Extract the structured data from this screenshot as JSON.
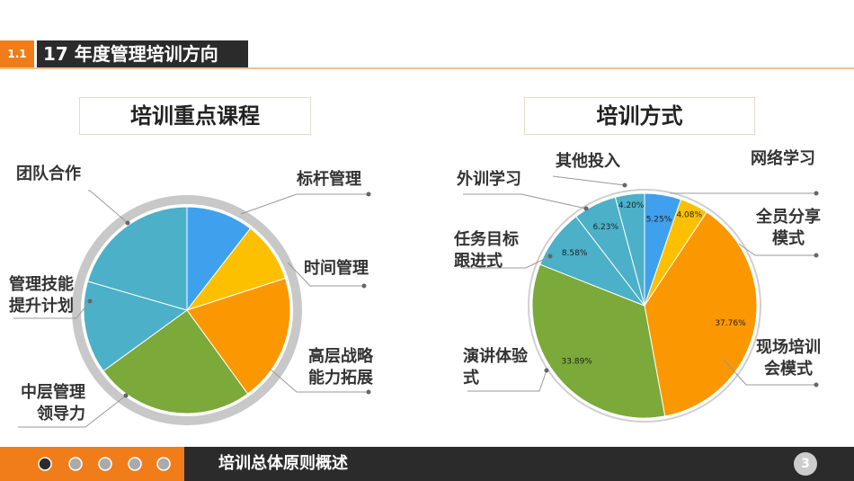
{
  "header": {
    "section": "1.1",
    "title": "17 年度管理培训方向"
  },
  "chart_data": [
    {
      "type": "pie",
      "title": "培训重点课程",
      "categories": [
        "标杆管理",
        "时间管理",
        "高层战略能力拓展",
        "中层管理领导力",
        "管理技能提升计划",
        "团队合作"
      ],
      "values": [
        10.5,
        9.5,
        20,
        25,
        14.5,
        20.5
      ],
      "colors": [
        "#3fa1ee",
        "#fcc000",
        "#fb9700",
        "#7ba93a",
        "#4bb0c8",
        "#4bb0c8"
      ]
    },
    {
      "type": "pie",
      "title": "培训方式",
      "categories": [
        "网络学习",
        "全员分享模式",
        "现场培训会模式",
        "演讲体验式",
        "任务目标跟进式",
        "外训学习",
        "其他投入"
      ],
      "values": [
        5.25,
        4.08,
        37.76,
        33.89,
        8.58,
        6.23,
        4.2
      ],
      "value_labels": [
        "5.25%",
        "4.08%",
        "37.76%",
        "33.89%",
        "8.58%",
        "6.23%",
        "4.20%"
      ],
      "colors": [
        "#3fa1ee",
        "#fcc000",
        "#fb9700",
        "#7ba93a",
        "#4bb0c8",
        "#4bb0c8",
        "#4bb0c8"
      ]
    }
  ],
  "footer": {
    "title": "培训总体原则概述",
    "page": "3"
  }
}
